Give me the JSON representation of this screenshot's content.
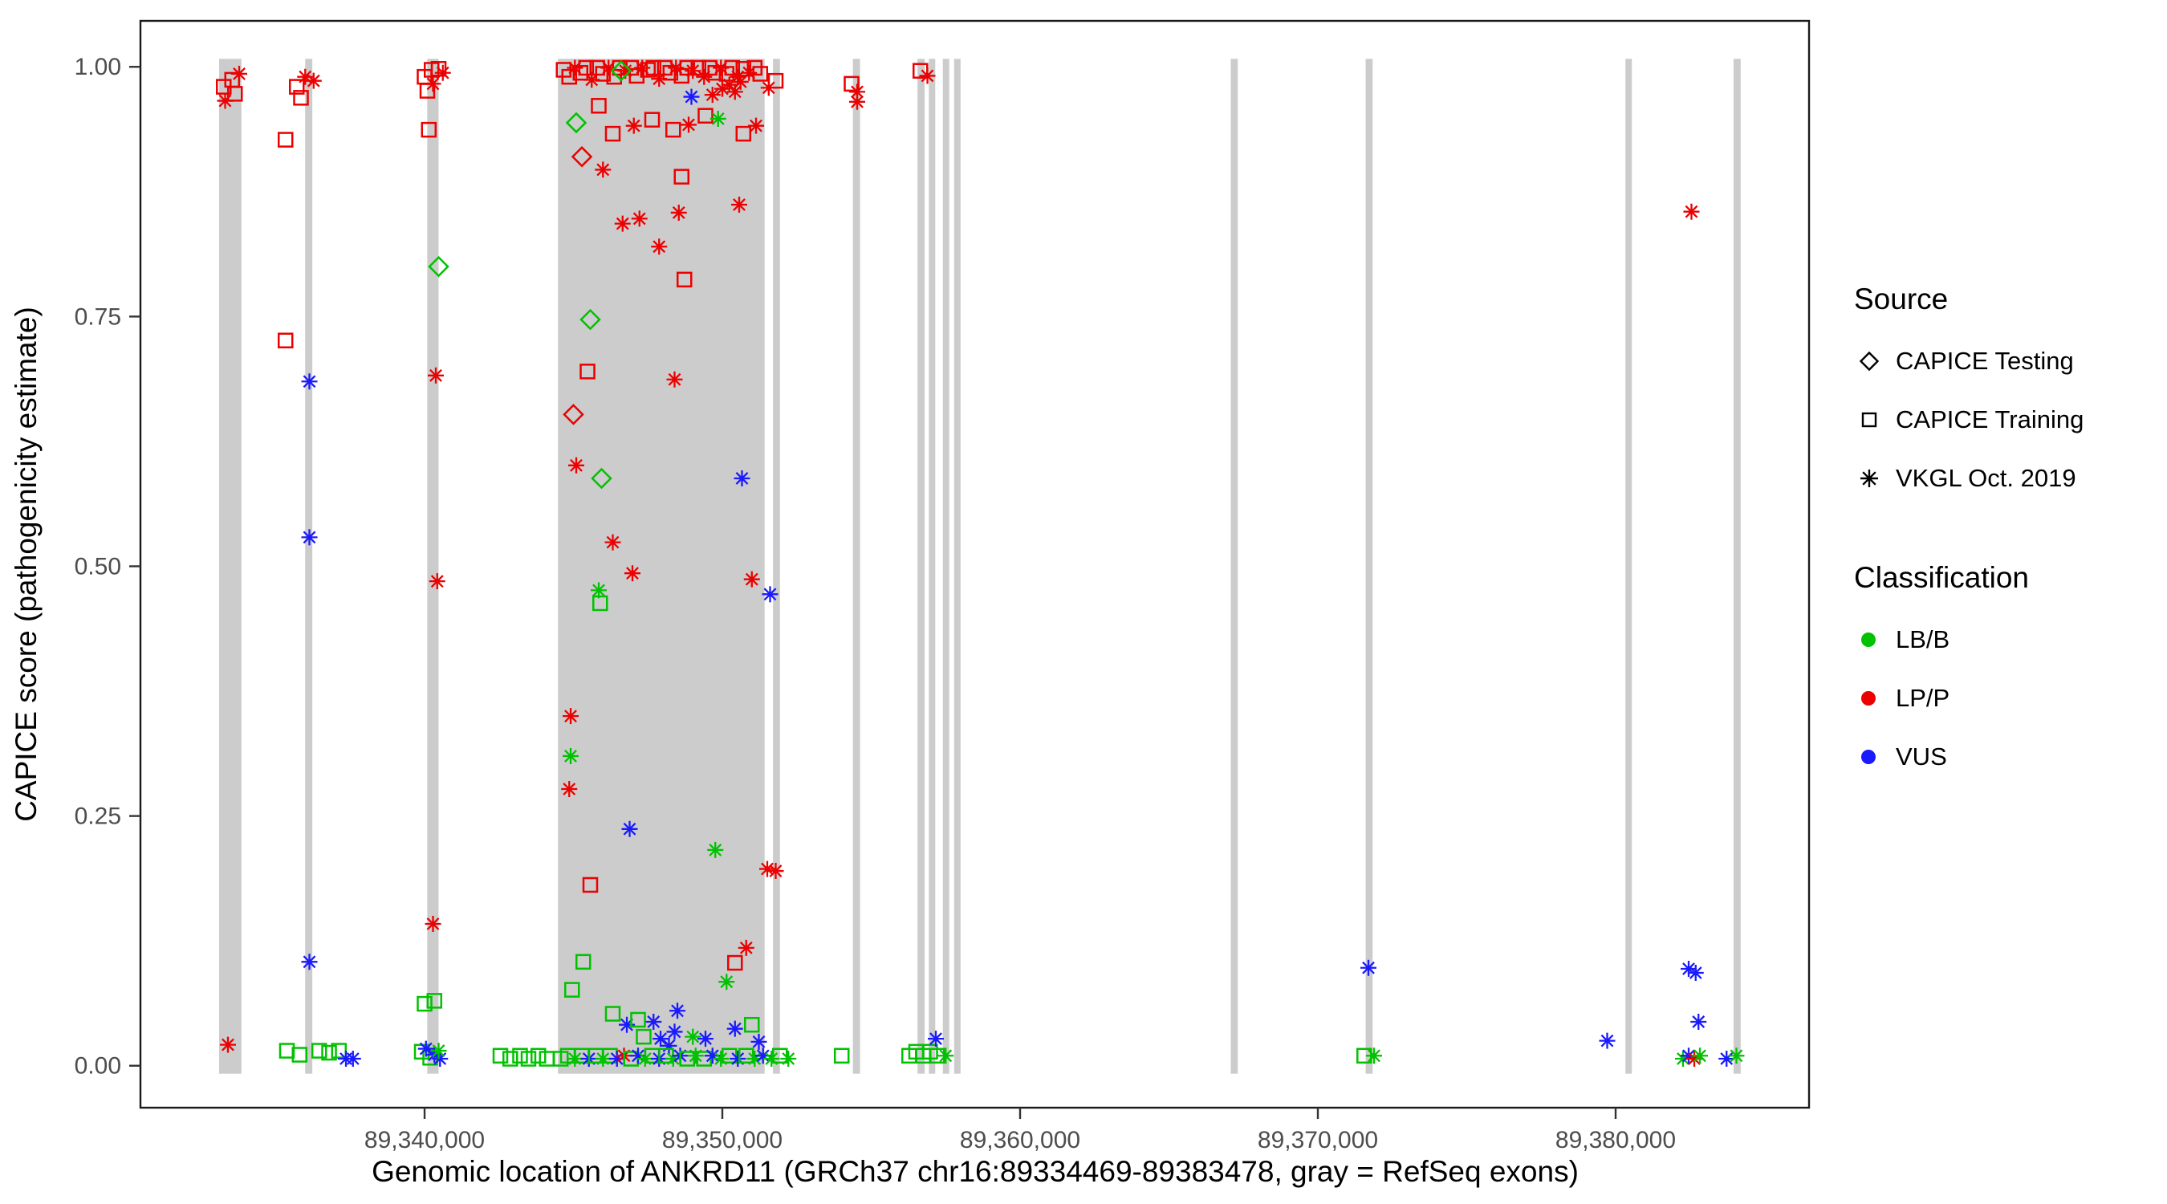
{
  "chart_data": {
    "type": "scatter",
    "title": "",
    "xlabel": "Genomic location of ANKRD11 (GRCh37 chr16:89334469-89383478, gray = RefSeq exons)",
    "ylabel": "CAPICE score (pathogenicity estimate)",
    "xlim": [
      89330458,
      89386496
    ],
    "ylim": [
      -0.042,
      1.046
    ],
    "x_ticks": [
      {
        "value": 89340000,
        "label": "89,340,000"
      },
      {
        "value": 89350000,
        "label": "89,350,000"
      },
      {
        "value": 89360000,
        "label": "89,360,000"
      },
      {
        "value": 89370000,
        "label": "89,370,000"
      },
      {
        "value": 89380000,
        "label": "89,380,000"
      }
    ],
    "y_ticks": [
      {
        "value": 0.0,
        "label": "0.00"
      },
      {
        "value": 0.25,
        "label": "0.25"
      },
      {
        "value": 0.5,
        "label": "0.50"
      },
      {
        "value": 0.75,
        "label": "0.75"
      },
      {
        "value": 1.0,
        "label": "1.00"
      }
    ],
    "legend": {
      "source_title": "Source",
      "source_items": [
        {
          "label": "CAPICE Testing",
          "shape": "diamond"
        },
        {
          "label": "CAPICE Training",
          "shape": "square"
        },
        {
          "label": "VKGL Oct. 2019",
          "shape": "asterisk"
        }
      ],
      "class_title": "Classification",
      "class_items": [
        {
          "label": "LB/B",
          "color": "#00c200"
        },
        {
          "label": "LP/P",
          "color": "#ec0000"
        },
        {
          "label": "VUS",
          "color": "#1a1aff"
        }
      ]
    },
    "colors": {
      "g": "#00c200",
      "r": "#ec0000",
      "b": "#1a1aff"
    },
    "shape_codes": {
      "d": "CAPICE Testing (open diamond)",
      "s": "CAPICE Training (open square)",
      "a": "VKGL Oct. 2019 (asterisk)"
    },
    "color_codes": {
      "g": "LB/B",
      "r": "LP/P",
      "b": "VUS"
    },
    "exon_color": "#cccccc",
    "exons": [
      [
        89333100,
        89333850
      ],
      [
        89335990,
        89336230
      ],
      [
        89340090,
        89340470
      ],
      [
        89344480,
        89351420
      ],
      [
        89351700,
        89351935
      ],
      [
        89354385,
        89354625
      ],
      [
        89356555,
        89356795
      ],
      [
        89356935,
        89357125
      ],
      [
        89357405,
        89357595
      ],
      [
        89357785,
        89357975
      ],
      [
        89367075,
        89367310
      ],
      [
        89371605,
        89371840
      ],
      [
        89380330,
        89380520
      ],
      [
        89383960,
        89384200
      ]
    ],
    "points": [
      [
        89333255,
        0.98,
        "s",
        "r"
      ],
      [
        89333538,
        0.987,
        "s",
        "r"
      ],
      [
        89333774,
        0.993,
        "a",
        "r"
      ],
      [
        89333302,
        0.966,
        "a",
        "r"
      ],
      [
        89333632,
        0.973,
        "s",
        "r"
      ],
      [
        89333396,
        0.021,
        "a",
        "r"
      ],
      [
        89335330,
        0.927,
        "s",
        "r"
      ],
      [
        89335708,
        0.98,
        "s",
        "r"
      ],
      [
        89335991,
        0.99,
        "a",
        "r"
      ],
      [
        89336274,
        0.986,
        "a",
        "r"
      ],
      [
        89335849,
        0.969,
        "s",
        "r"
      ],
      [
        89335330,
        0.726,
        "s",
        "r"
      ],
      [
        89336132,
        0.685,
        "a",
        "b"
      ],
      [
        89336132,
        0.529,
        "a",
        "b"
      ],
      [
        89336132,
        0.104,
        "a",
        "b"
      ],
      [
        89335377,
        0.015,
        "s",
        "g"
      ],
      [
        89335802,
        0.011,
        "s",
        "g"
      ],
      [
        89336462,
        0.015,
        "s",
        "g"
      ],
      [
        89336793,
        0.013,
        "s",
        "g"
      ],
      [
        89337123,
        0.015,
        "s",
        "g"
      ],
      [
        89337595,
        0.007,
        "a",
        "b"
      ],
      [
        89337359,
        0.007,
        "a",
        "b"
      ],
      [
        89340000,
        0.99,
        "s",
        "r"
      ],
      [
        89340236,
        0.997,
        "s",
        "r"
      ],
      [
        89340472,
        0.998,
        "s",
        "r"
      ],
      [
        89340613,
        0.994,
        "a",
        "r"
      ],
      [
        89340283,
        0.983,
        "a",
        "r"
      ],
      [
        89340094,
        0.976,
        "s",
        "r"
      ],
      [
        89340142,
        0.937,
        "s",
        "r"
      ],
      [
        89340472,
        0.8,
        "d",
        "g"
      ],
      [
        89340377,
        0.691,
        "a",
        "r"
      ],
      [
        89340424,
        0.485,
        "a",
        "r"
      ],
      [
        89340283,
        0.142,
        "a",
        "r"
      ],
      [
        89340000,
        0.062,
        "s",
        "g"
      ],
      [
        89340330,
        0.065,
        "s",
        "g"
      ],
      [
        89339906,
        0.014,
        "s",
        "g"
      ],
      [
        89340189,
        0.008,
        "s",
        "g"
      ],
      [
        89340047,
        0.017,
        "a",
        "b"
      ],
      [
        89340330,
        0.011,
        "a",
        "b"
      ],
      [
        89340519,
        0.007,
        "a",
        "b"
      ],
      [
        89340472,
        0.015,
        "a",
        "g"
      ],
      [
        89342547,
        0.01,
        "s",
        "g"
      ],
      [
        89342877,
        0.007,
        "s",
        "g"
      ],
      [
        89343207,
        0.01,
        "s",
        "g"
      ],
      [
        89343490,
        0.007,
        "s",
        "g"
      ],
      [
        89343821,
        0.01,
        "s",
        "g"
      ],
      [
        89344104,
        0.007,
        "s",
        "g"
      ],
      [
        89344670,
        0.997,
        "s",
        "r"
      ],
      [
        89344858,
        0.99,
        "s",
        "r"
      ],
      [
        89345047,
        0.999,
        "a",
        "r"
      ],
      [
        89345236,
        0.994,
        "s",
        "r"
      ],
      [
        89345425,
        0.999,
        "s",
        "r"
      ],
      [
        89345613,
        0.987,
        "a",
        "r"
      ],
      [
        89345802,
        0.999,
        "s",
        "r"
      ],
      [
        89345991,
        0.993,
        "s",
        "r"
      ],
      [
        89346179,
        0.999,
        "a",
        "r"
      ],
      [
        89346368,
        0.99,
        "s",
        "r"
      ],
      [
        89346557,
        0.999,
        "s",
        "r"
      ],
      [
        89346745,
        0.996,
        "a",
        "r"
      ],
      [
        89346934,
        0.999,
        "s",
        "r"
      ],
      [
        89347123,
        0.991,
        "s",
        "r"
      ],
      [
        89347311,
        0.999,
        "a",
        "r"
      ],
      [
        89347500,
        0.997,
        "s",
        "r"
      ],
      [
        89347689,
        0.999,
        "s",
        "r"
      ],
      [
        89347877,
        0.988,
        "a",
        "r"
      ],
      [
        89348066,
        0.999,
        "s",
        "r"
      ],
      [
        89348255,
        0.994,
        "s",
        "r"
      ],
      [
        89348443,
        0.999,
        "a",
        "r"
      ],
      [
        89348632,
        0.991,
        "s",
        "r"
      ],
      [
        89348821,
        0.999,
        "s",
        "r"
      ],
      [
        89349009,
        0.996,
        "a",
        "r"
      ],
      [
        89349198,
        0.999,
        "s",
        "r"
      ],
      [
        89349387,
        0.99,
        "a",
        "r"
      ],
      [
        89349575,
        0.999,
        "s",
        "r"
      ],
      [
        89349764,
        0.994,
        "s",
        "r"
      ],
      [
        89349953,
        0.999,
        "a",
        "r"
      ],
      [
        89350142,
        0.993,
        "s",
        "r"
      ],
      [
        89350330,
        0.999,
        "s",
        "r"
      ],
      [
        89350519,
        0.99,
        "a",
        "r"
      ],
      [
        89350708,
        0.998,
        "s",
        "r"
      ],
      [
        89350896,
        0.994,
        "a",
        "r"
      ],
      [
        89351085,
        0.999,
        "s",
        "r"
      ],
      [
        89351274,
        0.993,
        "s",
        "r"
      ],
      [
        89350000,
        0.978,
        "a",
        "r"
      ],
      [
        89350236,
        0.982,
        "a",
        "r"
      ],
      [
        89350425,
        0.975,
        "a",
        "r"
      ],
      [
        89350613,
        0.985,
        "a",
        "r"
      ],
      [
        89349670,
        0.972,
        "a",
        "r"
      ],
      [
        89346600,
        0.996,
        "d",
        "g"
      ],
      [
        89345094,
        0.944,
        "d",
        "g"
      ],
      [
        89345283,
        0.91,
        "d",
        "r"
      ],
      [
        89348962,
        0.97,
        "a",
        "b"
      ],
      [
        89345849,
        0.961,
        "s",
        "r"
      ],
      [
        89346321,
        0.933,
        "s",
        "r"
      ],
      [
        89347028,
        0.941,
        "a",
        "r"
      ],
      [
        89347642,
        0.947,
        "s",
        "r"
      ],
      [
        89348349,
        0.937,
        "s",
        "r"
      ],
      [
        89348868,
        0.942,
        "a",
        "r"
      ],
      [
        89349434,
        0.951,
        "s",
        "r"
      ],
      [
        89349858,
        0.948,
        "a",
        "g"
      ],
      [
        89350708,
        0.933,
        "s",
        "r"
      ],
      [
        89351132,
        0.941,
        "a",
        "r"
      ],
      [
        89345991,
        0.897,
        "a",
        "r"
      ],
      [
        89346651,
        0.843,
        "a",
        "r"
      ],
      [
        89347217,
        0.848,
        "a",
        "r"
      ],
      [
        89347877,
        0.82,
        "a",
        "r"
      ],
      [
        89348538,
        0.854,
        "a",
        "r"
      ],
      [
        89348632,
        0.89,
        "s",
        "r"
      ],
      [
        89350566,
        0.862,
        "a",
        "r"
      ],
      [
        89348726,
        0.787,
        "s",
        "r"
      ],
      [
        89345566,
        0.747,
        "d",
        "g"
      ],
      [
        89345472,
        0.695,
        "s",
        "r"
      ],
      [
        89348396,
        0.687,
        "a",
        "r"
      ],
      [
        89345000,
        0.652,
        "d",
        "r"
      ],
      [
        89345094,
        0.601,
        "a",
        "r"
      ],
      [
        89345943,
        0.588,
        "d",
        "g"
      ],
      [
        89350660,
        0.588,
        "a",
        "b"
      ],
      [
        89346321,
        0.524,
        "a",
        "r"
      ],
      [
        89346981,
        0.493,
        "a",
        "r"
      ],
      [
        89345849,
        0.476,
        "a",
        "g"
      ],
      [
        89345896,
        0.463,
        "s",
        "g"
      ],
      [
        89350991,
        0.487,
        "a",
        "r"
      ],
      [
        89351604,
        0.472,
        "a",
        "b"
      ],
      [
        89344906,
        0.35,
        "a",
        "r"
      ],
      [
        89344906,
        0.31,
        "a",
        "g"
      ],
      [
        89344858,
        0.277,
        "a",
        "r"
      ],
      [
        89346887,
        0.237,
        "a",
        "b"
      ],
      [
        89349764,
        0.216,
        "a",
        "g"
      ],
      [
        89351509,
        0.197,
        "a",
        "r"
      ],
      [
        89351792,
        0.195,
        "a",
        "r"
      ],
      [
        89345566,
        0.181,
        "s",
        "r"
      ],
      [
        89345330,
        0.104,
        "s",
        "g"
      ],
      [
        89344953,
        0.076,
        "s",
        "g"
      ],
      [
        89350802,
        0.118,
        "a",
        "r"
      ],
      [
        89350425,
        0.103,
        "s",
        "r"
      ],
      [
        89350142,
        0.084,
        "a",
        "g"
      ],
      [
        89346321,
        0.052,
        "s",
        "g"
      ],
      [
        89346793,
        0.041,
        "a",
        "b"
      ],
      [
        89347689,
        0.044,
        "a",
        "b"
      ],
      [
        89348491,
        0.055,
        "a",
        "b"
      ],
      [
        89347358,
        0.029,
        "s",
        "g"
      ],
      [
        89347925,
        0.027,
        "a",
        "b"
      ],
      [
        89348208,
        0.02,
        "a",
        "b"
      ],
      [
        89348396,
        0.034,
        "a",
        "b"
      ],
      [
        89349009,
        0.029,
        "a",
        "g"
      ],
      [
        89349434,
        0.027,
        "a",
        "b"
      ],
      [
        89350425,
        0.037,
        "a",
        "b"
      ],
      [
        89350991,
        0.041,
        "s",
        "g"
      ],
      [
        89351226,
        0.024,
        "a",
        "b"
      ],
      [
        89347170,
        0.046,
        "s",
        "g"
      ],
      [
        89344575,
        0.007,
        "s",
        "g"
      ],
      [
        89344811,
        0.01,
        "s",
        "g"
      ],
      [
        89345047,
        0.007,
        "a",
        "g"
      ],
      [
        89345283,
        0.01,
        "s",
        "g"
      ],
      [
        89345519,
        0.007,
        "a",
        "b"
      ],
      [
        89345755,
        0.01,
        "s",
        "g"
      ],
      [
        89345991,
        0.007,
        "a",
        "g"
      ],
      [
        89346226,
        0.01,
        "s",
        "g"
      ],
      [
        89346462,
        0.007,
        "a",
        "b"
      ],
      [
        89346698,
        0.01,
        "a",
        "r"
      ],
      [
        89346934,
        0.007,
        "s",
        "g"
      ],
      [
        89347170,
        0.01,
        "a",
        "b"
      ],
      [
        89347406,
        0.007,
        "a",
        "g"
      ],
      [
        89347642,
        0.01,
        "s",
        "g"
      ],
      [
        89347877,
        0.007,
        "a",
        "b"
      ],
      [
        89348113,
        0.01,
        "s",
        "g"
      ],
      [
        89348349,
        0.007,
        "a",
        "g"
      ],
      [
        89348585,
        0.01,
        "a",
        "b"
      ],
      [
        89348821,
        0.007,
        "s",
        "g"
      ],
      [
        89349104,
        0.01,
        "a",
        "g"
      ],
      [
        89349387,
        0.007,
        "s",
        "g"
      ],
      [
        89349670,
        0.01,
        "a",
        "b"
      ],
      [
        89349953,
        0.007,
        "a",
        "g"
      ],
      [
        89350236,
        0.01,
        "s",
        "g"
      ],
      [
        89350519,
        0.007,
        "a",
        "b"
      ],
      [
        89350802,
        0.01,
        "s",
        "g"
      ],
      [
        89351085,
        0.007,
        "a",
        "g"
      ],
      [
        89351368,
        0.01,
        "a",
        "b"
      ],
      [
        89351651,
        0.007,
        "a",
        "g"
      ],
      [
        89351934,
        0.01,
        "s",
        "g"
      ],
      [
        89352217,
        0.007,
        "a",
        "g"
      ],
      [
        89351557,
        0.979,
        "a",
        "r"
      ],
      [
        89351792,
        0.986,
        "s",
        "r"
      ],
      [
        89354340,
        0.983,
        "s",
        "r"
      ],
      [
        89354528,
        0.975,
        "a",
        "r"
      ],
      [
        89354528,
        0.965,
        "a",
        "r"
      ],
      [
        89354009,
        0.01,
        "s",
        "g"
      ],
      [
        89356651,
        0.996,
        "s",
        "r"
      ],
      [
        89356887,
        0.991,
        "a",
        "r"
      ],
      [
        89356274,
        0.01,
        "s",
        "g"
      ],
      [
        89356509,
        0.014,
        "s",
        "g"
      ],
      [
        89356745,
        0.01,
        "s",
        "g"
      ],
      [
        89356981,
        0.014,
        "s",
        "g"
      ],
      [
        89357217,
        0.01,
        "s",
        "g"
      ],
      [
        89357170,
        0.027,
        "a",
        "b"
      ],
      [
        89357500,
        0.01,
        "a",
        "g"
      ],
      [
        89371698,
        0.098,
        "a",
        "b"
      ],
      [
        89371557,
        0.01,
        "s",
        "g"
      ],
      [
        89371887,
        0.01,
        "a",
        "g"
      ],
      [
        89379717,
        0.025,
        "a",
        "b"
      ],
      [
        89382547,
        0.855,
        "a",
        "r"
      ],
      [
        89382453,
        0.097,
        "a",
        "b"
      ],
      [
        89382689,
        0.093,
        "a",
        "b"
      ],
      [
        89382783,
        0.044,
        "a",
        "b"
      ],
      [
        89382264,
        0.007,
        "a",
        "g"
      ],
      [
        89382453,
        0.01,
        "a",
        "b"
      ],
      [
        89382642,
        0.007,
        "a",
        "r"
      ],
      [
        89382830,
        0.01,
        "a",
        "g"
      ],
      [
        89383726,
        0.007,
        "a",
        "b"
      ],
      [
        89384057,
        0.01,
        "a",
        "g"
      ]
    ]
  }
}
